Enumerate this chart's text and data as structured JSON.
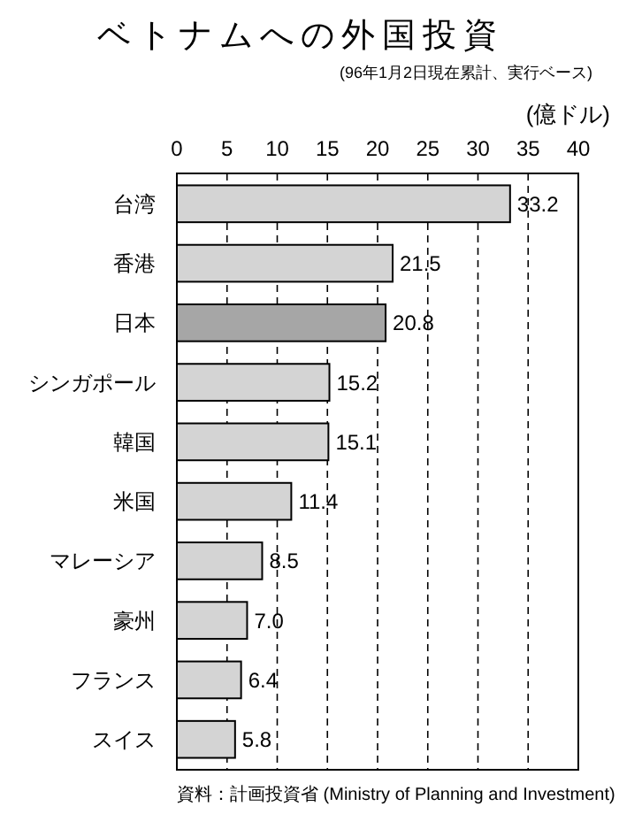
{
  "chart_data": {
    "type": "bar",
    "orientation": "horizontal",
    "title": "ベトナムへの外国投資",
    "subtitle": "(96年1月2日現在累計、実行ベース)",
    "xlabel": "(億ドル)",
    "categories": [
      "台湾",
      "香港",
      "日本",
      "シンガポール",
      "韓国",
      "米国",
      "マレーシア",
      "豪州",
      "フランス",
      "スイス"
    ],
    "values": [
      33.2,
      21.5,
      20.8,
      15.2,
      15.1,
      11.4,
      8.5,
      7.0,
      6.4,
      5.8
    ],
    "value_labels": [
      "33.2",
      "21.5",
      "20.8",
      "15.2",
      "15.1",
      "11.4",
      "8.5",
      "7.0",
      "6.4",
      "5.8"
    ],
    "colors": [
      "#d4d4d4",
      "#d4d4d4",
      "#a6a6a6",
      "#d4d4d4",
      "#d4d4d4",
      "#d4d4d4",
      "#d4d4d4",
      "#d4d4d4",
      "#d4d4d4",
      "#d4d4d4"
    ],
    "xlim": [
      0,
      40
    ],
    "xticks": [
      0,
      5,
      10,
      15,
      20,
      25,
      30,
      35,
      40
    ],
    "grid": "x",
    "annotations": [
      "資料：計画投資省 (Ministry of Planning and Investment)"
    ]
  }
}
